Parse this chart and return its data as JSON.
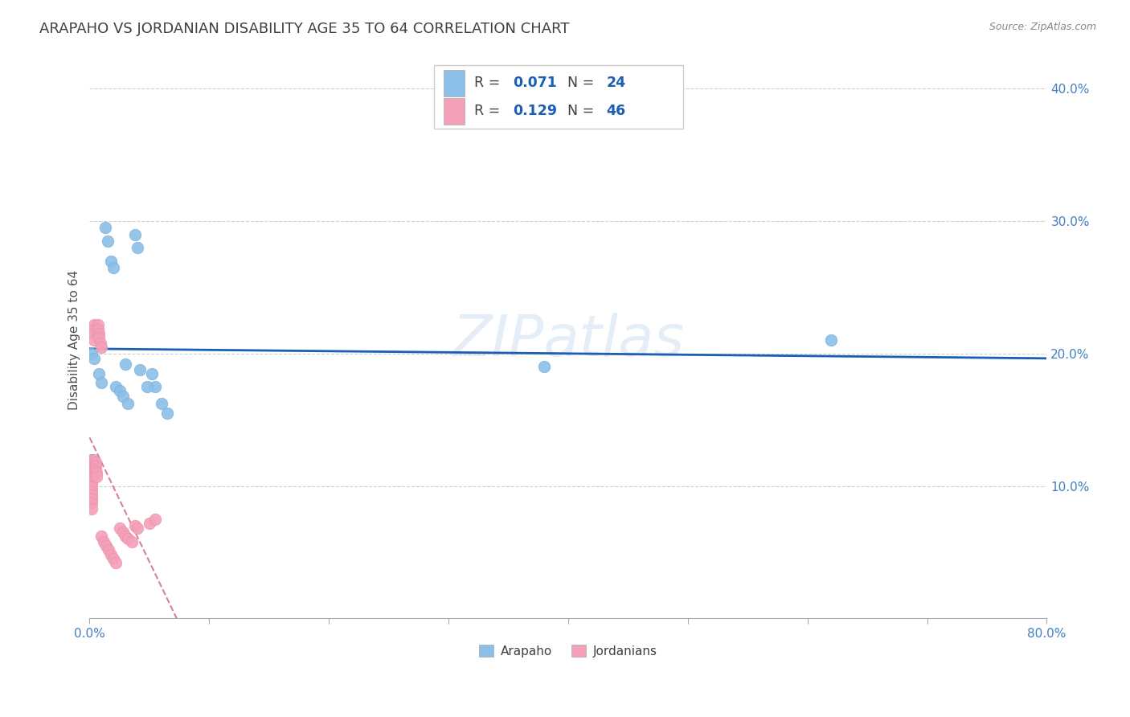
{
  "title": "ARAPAHO VS JORDANIAN DISABILITY AGE 35 TO 64 CORRELATION CHART",
  "source": "Source: ZipAtlas.com",
  "ylabel": "Disability Age 35 to 64",
  "xlim": [
    0.0,
    0.8
  ],
  "ylim": [
    0.0,
    0.42
  ],
  "arapaho_color": "#8bbfe8",
  "arapaho_edge_color": "#7aadd8",
  "jordanian_color": "#f4a0b8",
  "jordanian_edge_color": "#e890a8",
  "arapaho_line_color": "#1a5fb4",
  "jordanian_line_color": "#d06080",
  "legend_arapaho_r": "0.071",
  "legend_arapaho_n": "24",
  "legend_jordanian_r": "0.129",
  "legend_jordanian_n": "46",
  "arapaho_x": [
    0.002,
    0.004,
    0.008,
    0.01,
    0.013,
    0.015,
    0.018,
    0.02,
    0.022,
    0.025,
    0.028,
    0.03,
    0.032,
    0.038,
    0.04,
    0.042,
    0.052,
    0.055,
    0.06,
    0.065,
    0.002,
    0.38,
    0.62,
    0.048
  ],
  "arapaho_y": [
    0.2,
    0.196,
    0.185,
    0.178,
    0.295,
    0.285,
    0.27,
    0.265,
    0.175,
    0.172,
    0.168,
    0.192,
    0.162,
    0.29,
    0.28,
    0.188,
    0.185,
    0.175,
    0.162,
    0.155,
    0.12,
    0.19,
    0.21,
    0.175
  ],
  "jordanian_x": [
    0.002,
    0.002,
    0.002,
    0.002,
    0.002,
    0.002,
    0.002,
    0.002,
    0.002,
    0.002,
    0.002,
    0.003,
    0.003,
    0.003,
    0.003,
    0.004,
    0.004,
    0.004,
    0.004,
    0.005,
    0.005,
    0.005,
    0.006,
    0.006,
    0.007,
    0.007,
    0.008,
    0.008,
    0.009,
    0.01,
    0.01,
    0.012,
    0.014,
    0.016,
    0.018,
    0.02,
    0.022,
    0.025,
    0.028,
    0.03,
    0.032,
    0.035,
    0.038,
    0.04,
    0.05,
    0.055
  ],
  "jordanian_y": [
    0.115,
    0.112,
    0.108,
    0.105,
    0.102,
    0.099,
    0.096,
    0.093,
    0.09,
    0.087,
    0.083,
    0.12,
    0.116,
    0.112,
    0.108,
    0.222,
    0.218,
    0.215,
    0.21,
    0.118,
    0.115,
    0.112,
    0.11,
    0.107,
    0.222,
    0.218,
    0.215,
    0.212,
    0.208,
    0.205,
    0.062,
    0.058,
    0.055,
    0.052,
    0.048,
    0.045,
    0.042,
    0.068,
    0.065,
    0.062,
    0.06,
    0.058,
    0.07,
    0.068,
    0.072,
    0.075
  ],
  "bg_color": "#ffffff",
  "grid_color": "#d0d0d0",
  "axis_color": "#4080c0",
  "title_color": "#404040",
  "title_fontsize": 13,
  "label_fontsize": 11,
  "tick_fontsize": 11
}
